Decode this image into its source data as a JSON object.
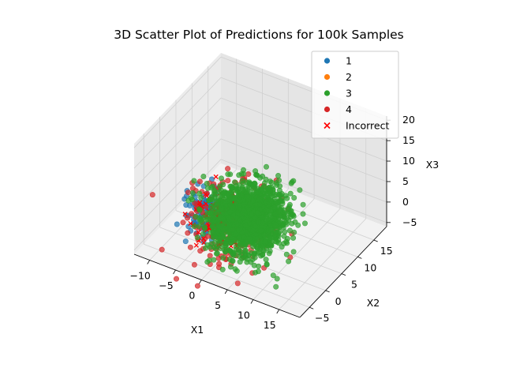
{
  "chart_data": {
    "type": "scatter",
    "projection": "3d",
    "title": "3D Scatter Plot of Predictions for 100k Samples",
    "xlabel": "X1",
    "ylabel": "X2",
    "zlabel": "X3",
    "xlim": [
      -13,
      19
    ],
    "ylim": [
      -8,
      19
    ],
    "zlim": [
      -6,
      21
    ],
    "xticks": [
      "−10",
      "−5",
      "0",
      "5",
      "10",
      "15"
    ],
    "yticks": [
      "−5",
      "0",
      "5",
      "10",
      "15"
    ],
    "zticks": [
      "−5",
      "0",
      "5",
      "10",
      "15",
      "20"
    ],
    "grid": true,
    "legend_position": "top-right",
    "series": [
      {
        "name": "1",
        "color": "#1f77b4",
        "marker": "circle",
        "center": [
          -5,
          2,
          0
        ],
        "spread": 2.2,
        "approx_visible_points": 120
      },
      {
        "name": "2",
        "color": "#ff7f0e",
        "marker": "circle",
        "center": [
          2,
          2,
          0
        ],
        "spread": 2.0,
        "approx_visible_points": 0
      },
      {
        "name": "3",
        "color": "#2ca02c",
        "marker": "circle",
        "center": [
          3,
          2,
          2
        ],
        "spread": 3.2,
        "approx_visible_points": 1400
      },
      {
        "name": "4",
        "color": "#d62728",
        "marker": "circle",
        "center": [
          0,
          2,
          0
        ],
        "spread": 3.6,
        "approx_visible_points": 260
      },
      {
        "name": "Incorrect",
        "color": "#ff0000",
        "marker": "x",
        "center": [
          -1,
          2,
          0
        ],
        "spread": 2.6,
        "approx_visible_points": 220
      }
    ]
  }
}
